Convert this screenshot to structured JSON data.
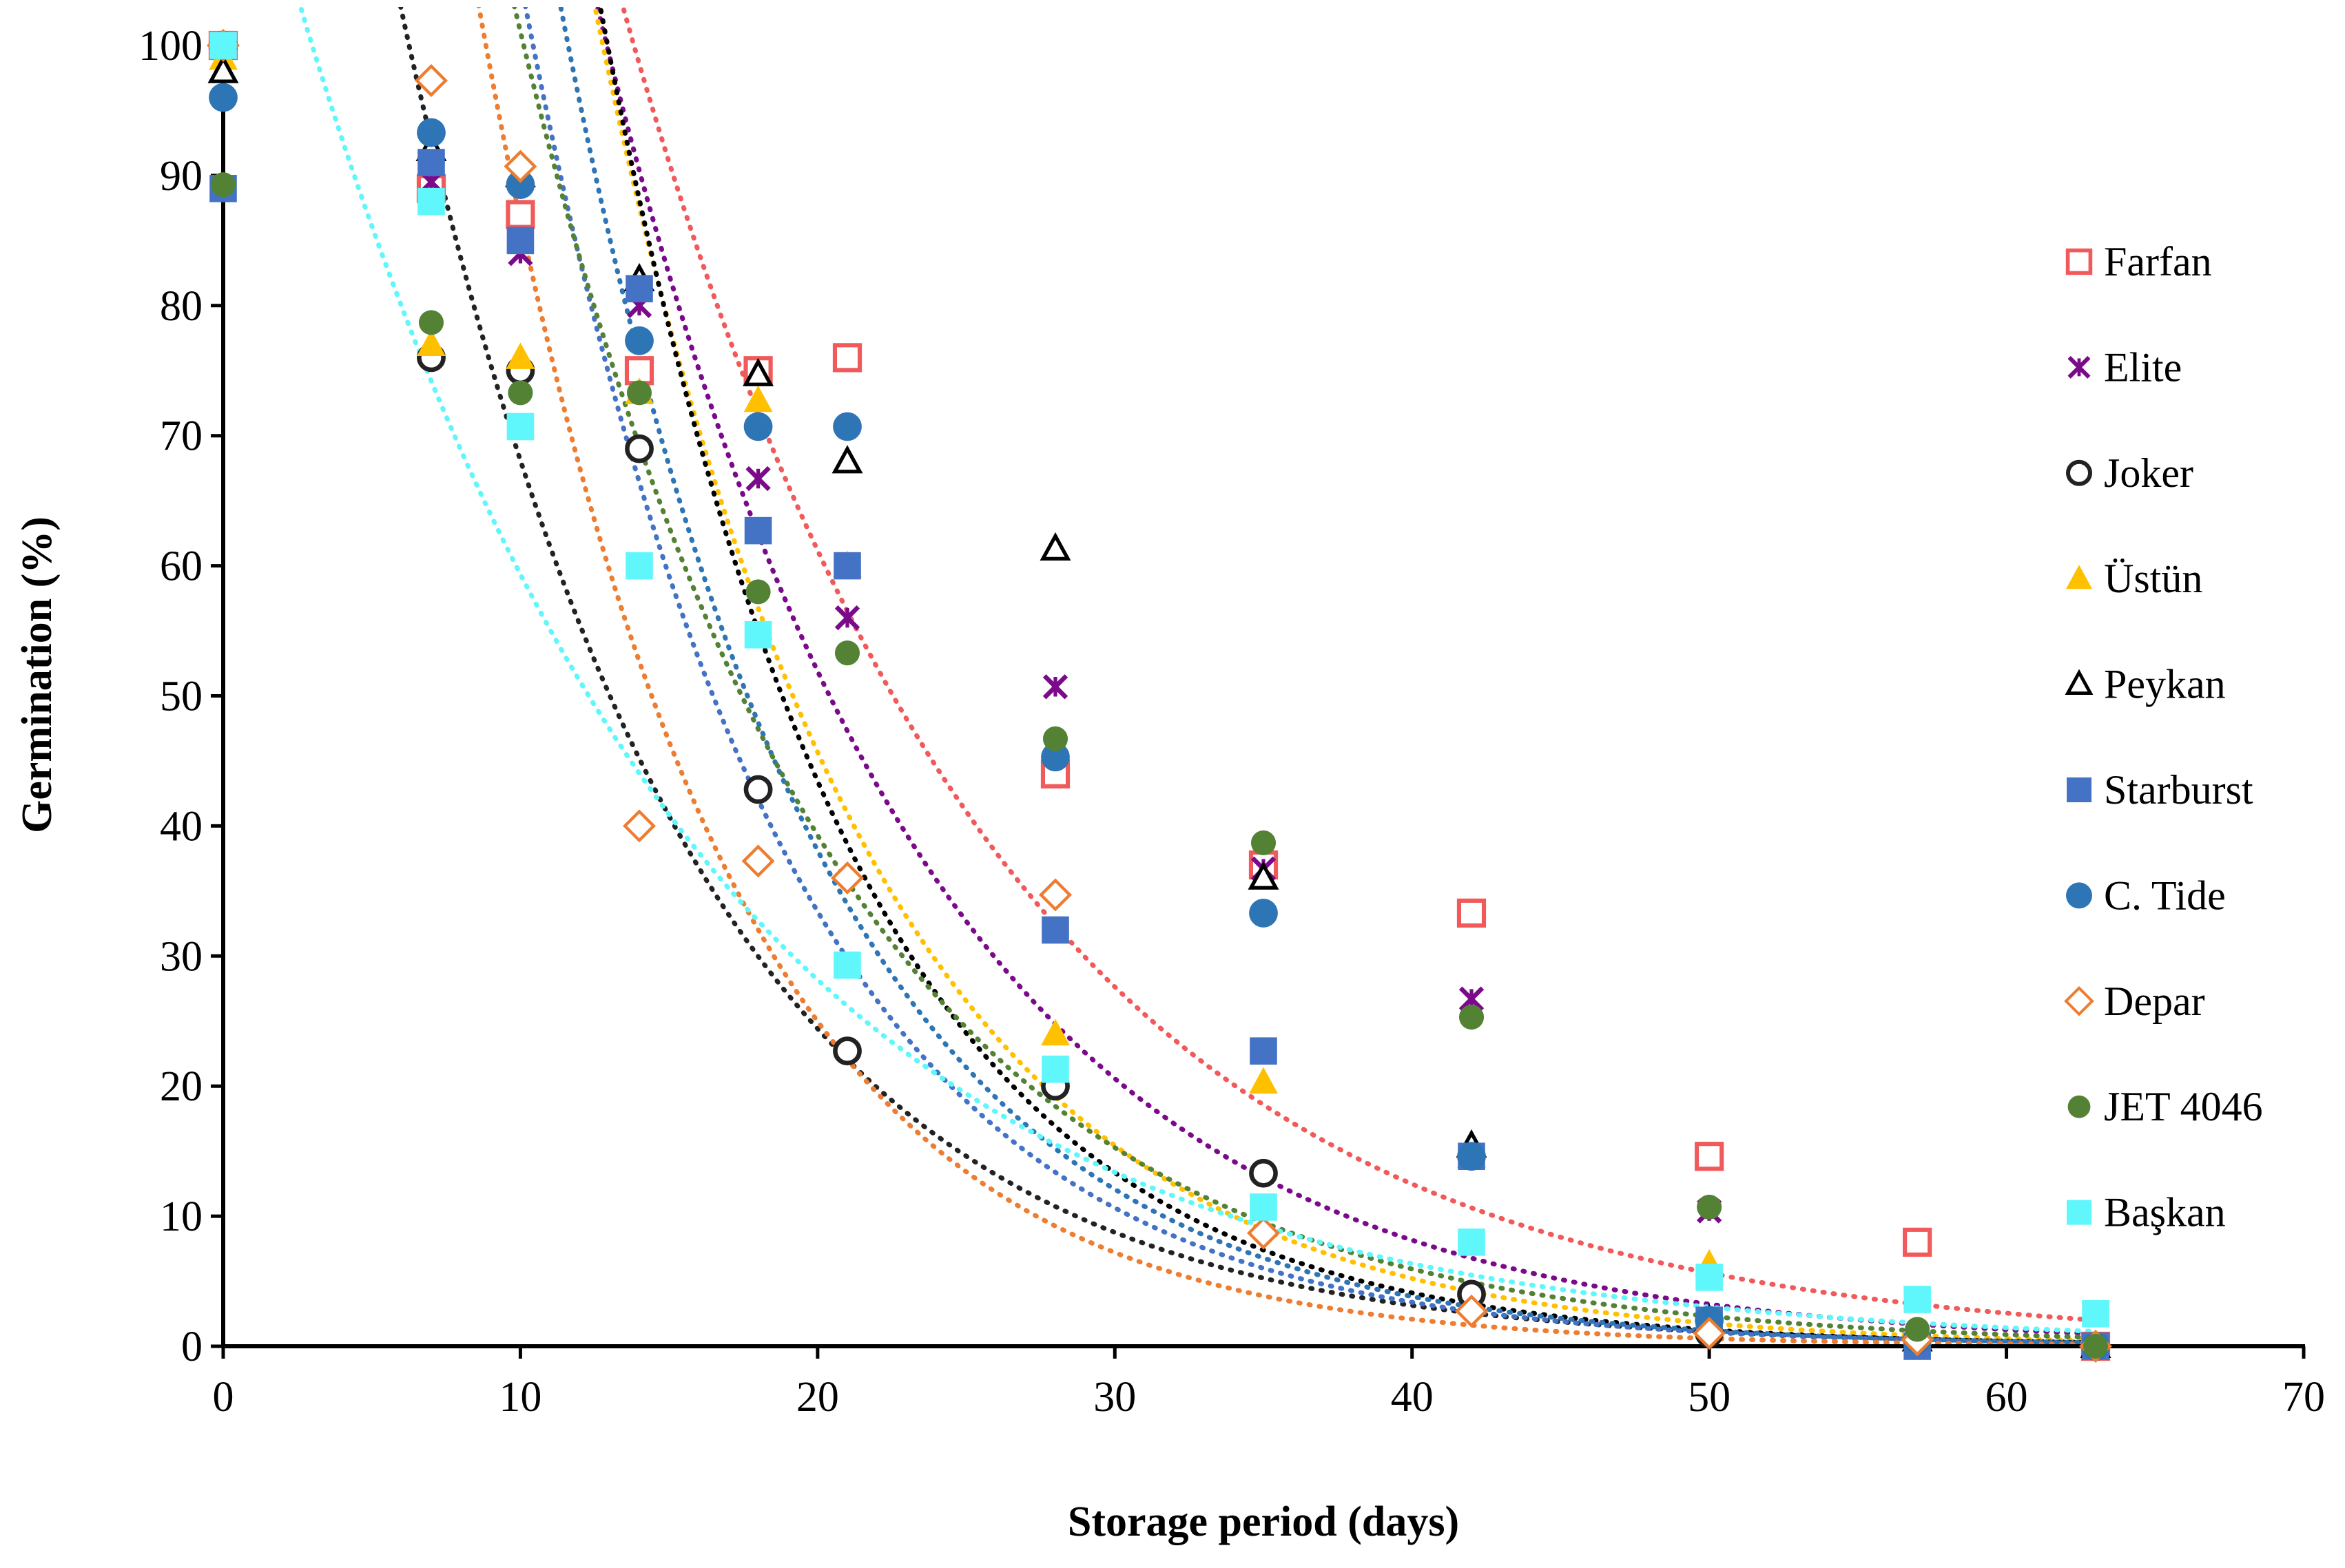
{
  "chart_data": {
    "type": "scatter",
    "title": "",
    "xlabel": "Storage period (days)",
    "ylabel": "Germination (%)",
    "xlim": [
      0,
      70
    ],
    "ylim": [
      0,
      100
    ],
    "xticks": [
      0,
      10,
      20,
      30,
      40,
      50,
      60,
      70
    ],
    "yticks": [
      0,
      10,
      20,
      30,
      40,
      50,
      60,
      70,
      80,
      90,
      100
    ],
    "grid": false,
    "legend_position": "right",
    "trendline": "exponential, dotted",
    "series": [
      {
        "name": "Farfan",
        "color": "#f15a5a",
        "marker": "square-open",
        "points": [
          [
            0,
            100
          ],
          [
            7,
            89
          ],
          [
            10,
            87
          ],
          [
            14,
            75
          ],
          [
            18,
            75
          ],
          [
            21,
            76
          ],
          [
            28,
            44
          ],
          [
            35,
            37
          ],
          [
            42,
            33.3
          ],
          [
            50,
            14.6
          ],
          [
            57,
            8
          ],
          [
            63,
            0
          ]
        ],
        "trend": {
          "a": 300,
          "b": 0.0795
        }
      },
      {
        "name": "Elite",
        "color": "#7b0a8a",
        "marker": "x-star",
        "points": [
          [
            0,
            89
          ],
          [
            7,
            89.5
          ],
          [
            10,
            84
          ],
          [
            14,
            80
          ],
          [
            18,
            66.7
          ],
          [
            21,
            56
          ],
          [
            28,
            50.7
          ],
          [
            35,
            36.7
          ],
          [
            42,
            26.7
          ],
          [
            50,
            10.4
          ],
          [
            57,
            0.5
          ],
          [
            63,
            0
          ]
        ],
        "trend": {
          "a": 330,
          "b": 0.0925
        }
      },
      {
        "name": "Joker",
        "color": "#222222",
        "marker": "circle-open",
        "points": [
          [
            0,
            100
          ],
          [
            7,
            76
          ],
          [
            10,
            75
          ],
          [
            14,
            69
          ],
          [
            18,
            42.8
          ],
          [
            21,
            22.7
          ],
          [
            28,
            20
          ],
          [
            35,
            13.3
          ],
          [
            42,
            4
          ],
          [
            50,
            1
          ],
          [
            57,
            0.5
          ],
          [
            63,
            0
          ]
        ],
        "trend": {
          "a": 190,
          "b": 0.1026
        }
      },
      {
        "name": "Üstün",
        "color": "#ffc000",
        "marker": "triangle",
        "points": [
          [
            0,
            99
          ],
          [
            7,
            77
          ],
          [
            10,
            76
          ],
          [
            14,
            73.3
          ],
          [
            18,
            72.7
          ],
          [
            21,
            60
          ],
          [
            28,
            24
          ],
          [
            35,
            20.3
          ],
          [
            42,
            14.6
          ],
          [
            50,
            6.3
          ],
          [
            57,
            1
          ],
          [
            63,
            0
          ]
        ],
        "trend": {
          "a": 400,
          "b": 0.1085
        }
      },
      {
        "name": "Peykan",
        "color": "#000000",
        "marker": "triangle-open",
        "points": [
          [
            0,
            98
          ],
          [
            7,
            92
          ],
          [
            10,
            90
          ],
          [
            14,
            82
          ],
          [
            18,
            74.7
          ],
          [
            21,
            68
          ],
          [
            28,
            61.3
          ],
          [
            35,
            36
          ],
          [
            42,
            15.4
          ],
          [
            50,
            2
          ],
          [
            57,
            0.5
          ],
          [
            63,
            0
          ]
        ],
        "trend": {
          "a": 460,
          "b": 0.118
        }
      },
      {
        "name": "Starburst",
        "color": "#4472c4",
        "marker": "square",
        "points": [
          [
            0,
            89
          ],
          [
            7,
            91
          ],
          [
            10,
            85
          ],
          [
            14,
            81.3
          ],
          [
            18,
            62.7
          ],
          [
            21,
            60
          ],
          [
            28,
            32
          ],
          [
            35,
            22.7
          ],
          [
            42,
            14.6
          ],
          [
            50,
            2
          ],
          [
            57,
            0
          ],
          [
            63,
            0
          ]
        ],
        "trend": {
          "a": 330,
          "b": 0.1145
        }
      },
      {
        "name": "C. Tide",
        "color": "#2e75b6",
        "marker": "circle",
        "points": [
          [
            0,
            96
          ],
          [
            7,
            93.3
          ],
          [
            10,
            89.3
          ],
          [
            14,
            77.3
          ],
          [
            18,
            70.7
          ],
          [
            21,
            70.7
          ],
          [
            28,
            45.3
          ],
          [
            35,
            33.3
          ],
          [
            42,
            14.6
          ],
          [
            50,
            2
          ],
          [
            57,
            0.5
          ],
          [
            63,
            0
          ]
        ],
        "trend": {
          "a": 380,
          "b": 0.115
        }
      },
      {
        "name": "Depar",
        "color": "#ed7d31",
        "marker": "diamond-open",
        "points": [
          [
            0,
            100
          ],
          [
            7,
            97.3
          ],
          [
            10,
            90.7
          ],
          [
            14,
            40
          ],
          [
            18,
            37.3
          ],
          [
            21,
            36
          ],
          [
            28,
            34.7
          ],
          [
            35,
            8.7
          ],
          [
            42,
            2.7
          ],
          [
            50,
            1
          ],
          [
            57,
            0.5
          ],
          [
            63,
            0
          ]
        ],
        "trend": {
          "a": 300,
          "b": 0.1243
        }
      },
      {
        "name": "JET 4046",
        "color": "#548235",
        "marker": "circle-small",
        "points": [
          [
            0,
            89.3
          ],
          [
            7,
            78.7
          ],
          [
            10,
            73.3
          ],
          [
            14,
            73.3
          ],
          [
            18,
            58
          ],
          [
            21,
            53.3
          ],
          [
            28,
            46.7
          ],
          [
            35,
            38.7
          ],
          [
            42,
            25.3
          ],
          [
            50,
            10.7
          ],
          [
            57,
            1.3
          ],
          [
            63,
            0
          ]
        ],
        "trend": {
          "a": 260,
          "b": 0.0945
        }
      },
      {
        "name": "Başkan",
        "color": "#5ff7fb",
        "marker": "square",
        "points": [
          [
            0,
            100
          ],
          [
            7,
            88
          ],
          [
            10,
            70.7
          ],
          [
            14,
            60
          ],
          [
            18,
            54.7
          ],
          [
            21,
            29.3
          ],
          [
            28,
            21.3
          ],
          [
            35,
            10.7
          ],
          [
            42,
            8
          ],
          [
            50,
            5.3
          ],
          [
            57,
            3.6
          ],
          [
            63,
            2.5
          ]
        ],
        "trend": {
          "a": 125,
          "b": 0.0745
        }
      }
    ]
  }
}
